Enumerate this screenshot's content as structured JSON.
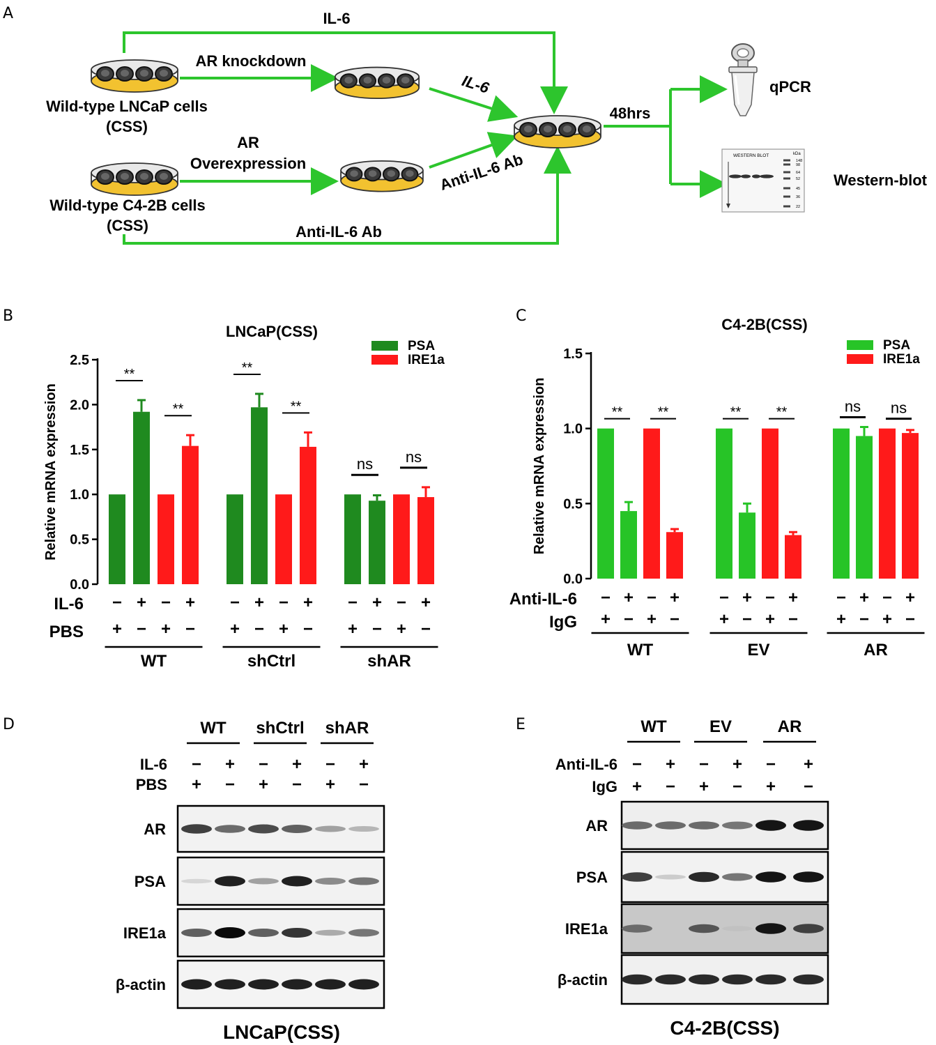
{
  "panel_letters": {
    "a": "A",
    "b": "B",
    "c": "C",
    "d": "D",
    "e": "E"
  },
  "colors": {
    "arrow": "#2dc52d",
    "psa_dark": "#1f8a1f",
    "psa_light": "#27c427",
    "ire1a": "#ff1a1a",
    "dish_yellow": "#f2c230",
    "cell": "#3a3a3a"
  },
  "panel_a": {
    "top_arrow_label": "IL-6",
    "knockdown_label": "AR knockdown",
    "il6_diag_label": "IL-6",
    "cell_line_1": "Wild-type LNCaP cells",
    "css_1": "(CSS)",
    "overexp_label_1": "AR",
    "overexp_label_2": "Overexpression",
    "antibody_diag_label": "Anti-IL-6 Ab",
    "cell_line_2": "Wild-type C4-2B cells",
    "css_2": "(CSS)",
    "bottom_arrow_label": "Anti-IL-6 Ab",
    "time_label": "48hrs",
    "qpcr_label": "qPCR",
    "western_label": "Western-blot",
    "blot_icon_title": "WESTERN  BLOT",
    "blot_icon_kda": "kDa",
    "blot_icon_ladder": [
      "148",
      "98",
      "64",
      "52",
      "45",
      "36",
      "22"
    ],
    "icons": [
      "tube-icon",
      "western-blot-icon",
      "petri-dish-icon"
    ]
  },
  "chart_data": [
    {
      "type": "bar",
      "title": "LNCaP(CSS)",
      "ylabel": "Relative mRNA expression",
      "ylim": [
        0,
        2.5
      ],
      "yticks": [
        "0.0",
        "0.5",
        "1.0",
        "1.5",
        "2.0",
        "2.5"
      ],
      "legend": [
        {
          "name": "PSA",
          "color": "#1f8a1f"
        },
        {
          "name": "IRE1a",
          "color": "#ff1a1a"
        }
      ],
      "legend_position": "top-right",
      "groups": [
        {
          "name": "WT",
          "bars": [
            {
              "series": "PSA",
              "value": 1.0,
              "error": 0
            },
            {
              "series": "PSA",
              "value": 1.92,
              "error": 0.13
            },
            {
              "series": "IRE1a",
              "value": 1.0,
              "error": 0
            },
            {
              "series": "IRE1a",
              "value": 1.54,
              "error": 0.12
            }
          ],
          "sig": [
            "**",
            "**"
          ]
        },
        {
          "name": "shCtrl",
          "bars": [
            {
              "series": "PSA",
              "value": 1.0,
              "error": 0
            },
            {
              "series": "PSA",
              "value": 1.97,
              "error": 0.15
            },
            {
              "series": "IRE1a",
              "value": 1.0,
              "error": 0
            },
            {
              "series": "IRE1a",
              "value": 1.53,
              "error": 0.16
            }
          ],
          "sig": [
            "**",
            "**"
          ]
        },
        {
          "name": "shAR",
          "bars": [
            {
              "series": "PSA",
              "value": 1.0,
              "error": 0
            },
            {
              "series": "PSA",
              "value": 0.93,
              "error": 0.06
            },
            {
              "series": "IRE1a",
              "value": 1.0,
              "error": 0
            },
            {
              "series": "IRE1a",
              "value": 0.97,
              "error": 0.11
            }
          ],
          "sig": [
            "ns",
            "ns"
          ]
        }
      ],
      "row1_label": "IL-6",
      "row1": [
        "−",
        "+",
        "−",
        "+"
      ],
      "row2_label": "PBS",
      "row2": [
        "+",
        "−",
        "+",
        "−"
      ]
    },
    {
      "type": "bar",
      "title": "C4-2B(CSS)",
      "ylabel": "Relative mRNA expression",
      "ylim": [
        0,
        1.5
      ],
      "yticks": [
        "0.0",
        "0.5",
        "1.0",
        "1.5"
      ],
      "legend": [
        {
          "name": "PSA",
          "color": "#27c427"
        },
        {
          "name": "IRE1a",
          "color": "#ff1a1a"
        }
      ],
      "legend_position": "top-right",
      "groups": [
        {
          "name": "WT",
          "bars": [
            {
              "series": "PSA",
              "value": 1.0,
              "error": 0
            },
            {
              "series": "PSA",
              "value": 0.45,
              "error": 0.06
            },
            {
              "series": "IRE1a",
              "value": 1.0,
              "error": 0
            },
            {
              "series": "IRE1a",
              "value": 0.31,
              "error": 0.02
            }
          ],
          "sig": [
            "**",
            "**"
          ]
        },
        {
          "name": "EV",
          "bars": [
            {
              "series": "PSA",
              "value": 1.0,
              "error": 0
            },
            {
              "series": "PSA",
              "value": 0.44,
              "error": 0.06
            },
            {
              "series": "IRE1a",
              "value": 1.0,
              "error": 0
            },
            {
              "series": "IRE1a",
              "value": 0.29,
              "error": 0.02
            }
          ],
          "sig": [
            "**",
            "**"
          ]
        },
        {
          "name": "AR",
          "bars": [
            {
              "series": "PSA",
              "value": 1.0,
              "error": 0
            },
            {
              "series": "PSA",
              "value": 0.95,
              "error": 0.06
            },
            {
              "series": "IRE1a",
              "value": 1.0,
              "error": 0
            },
            {
              "series": "IRE1a",
              "value": 0.97,
              "error": 0.02
            }
          ],
          "sig": [
            "ns",
            "ns"
          ]
        }
      ],
      "row1_label": "Anti-IL-6",
      "row1": [
        "−",
        "+",
        "−",
        "+"
      ],
      "row2_label": "IgG",
      "row2": [
        "+",
        "−",
        "+",
        "−"
      ]
    }
  ],
  "panel_d": {
    "groups": [
      "WT",
      "shCtrl",
      "shAR"
    ],
    "row1_label": "IL-6",
    "row1": [
      "−",
      "+",
      "−",
      "+",
      "−",
      "+"
    ],
    "row2_label": "PBS",
    "row2": [
      "+",
      "−",
      "+",
      "−",
      "+",
      "−"
    ],
    "blots": [
      {
        "label": "AR",
        "intensity": [
          0.75,
          0.55,
          0.7,
          0.6,
          0.3,
          0.2
        ]
      },
      {
        "label": "PSA",
        "intensity": [
          0.05,
          0.9,
          0.3,
          0.9,
          0.4,
          0.5
        ]
      },
      {
        "label": "IRE1a",
        "intensity": [
          0.6,
          1.0,
          0.6,
          0.8,
          0.25,
          0.5
        ]
      },
      {
        "label": "β-actin",
        "intensity": [
          0.9,
          0.9,
          0.9,
          0.9,
          0.9,
          0.9
        ]
      }
    ],
    "caption": "LNCaP(CSS)"
  },
  "panel_e": {
    "groups": [
      "WT",
      "EV",
      "AR"
    ],
    "row1_label": "Anti-IL-6",
    "row1": [
      "−",
      "+",
      "−",
      "+",
      "−",
      "+"
    ],
    "row2_label": "IgG",
    "row2": [
      "+",
      "−",
      "+",
      "−",
      "+",
      "−"
    ],
    "blots": [
      {
        "label": "AR",
        "intensity": [
          0.55,
          0.55,
          0.55,
          0.5,
          0.95,
          0.95
        ]
      },
      {
        "label": "PSA",
        "intensity": [
          0.75,
          0.1,
          0.85,
          0.5,
          0.95,
          0.95
        ]
      },
      {
        "label": "IRE1a",
        "intensity": [
          0.55,
          0.0,
          0.65,
          0.15,
          0.95,
          0.75
        ]
      },
      {
        "label": "β-actin",
        "intensity": [
          0.85,
          0.85,
          0.85,
          0.85,
          0.85,
          0.85
        ]
      }
    ],
    "caption": "C4-2B(CSS)"
  }
}
